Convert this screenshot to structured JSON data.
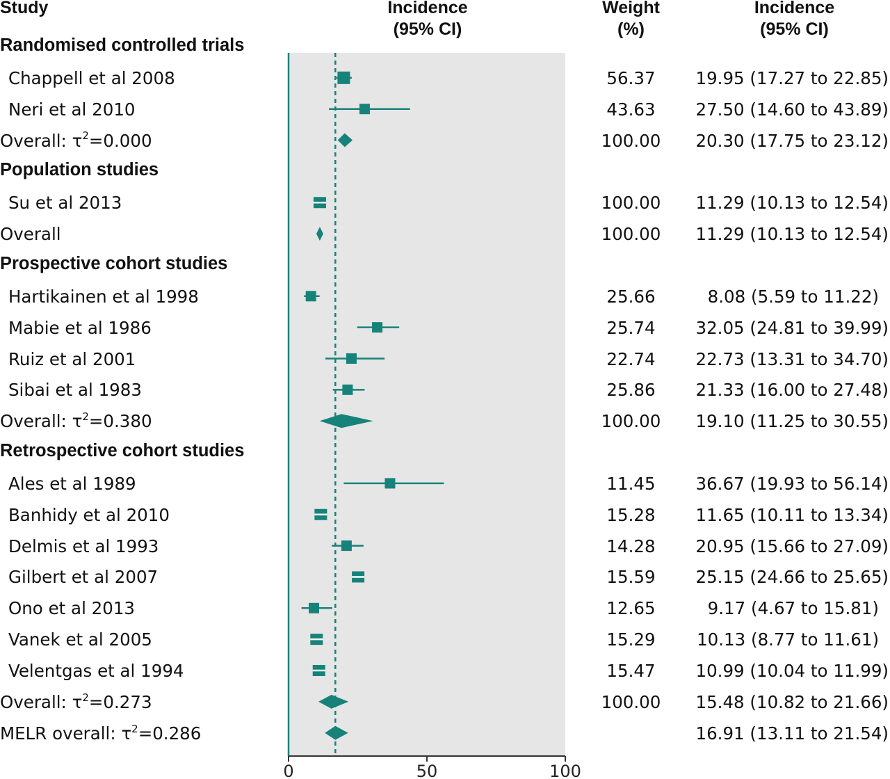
{
  "headers": {
    "study": "Study",
    "incidence_plot": [
      "Incidence",
      "(95% CI)"
    ],
    "weight": [
      "Weight",
      "(%)"
    ],
    "incidence_ci": [
      "Incidence",
      "(95% CI)"
    ]
  },
  "colors": {
    "accent": "#17827a",
    "panel": "#e6e6e6"
  },
  "chart_data": {
    "type": "forest",
    "x_ticks": [
      0,
      50,
      100
    ],
    "xlim": [
      0,
      100
    ],
    "reference_line": 16.91,
    "rows": [
      {
        "kind": "group",
        "label": "Randomised controlled trials"
      },
      {
        "kind": "study",
        "label": "Chappell et al 2008",
        "weight": "56.37",
        "ci_text": "19.95 (17.27 to 22.85)",
        "est": 19.95,
        "lo": 17.27,
        "hi": 22.85,
        "w": 56.37
      },
      {
        "kind": "study",
        "label": "Neri et al 2010",
        "weight": "43.63",
        "ci_text": "27.50 (14.60 to 43.89)",
        "est": 27.5,
        "lo": 14.6,
        "hi": 43.89,
        "w": 43.63
      },
      {
        "kind": "overall",
        "label": "Overall: τ",
        "tau": "=0.000",
        "weight": "100.00",
        "ci_text": "20.30 (17.75 to 23.12)",
        "est": 20.3,
        "lo": 17.75,
        "hi": 23.12
      },
      {
        "kind": "group",
        "label": "Population studies"
      },
      {
        "kind": "study",
        "label": "Su et al 2013",
        "weight": "100.00",
        "ci_text": "11.29 (10.13 to 12.54)",
        "est": 11.29,
        "lo": 10.13,
        "hi": 12.54,
        "w": 100.0
      },
      {
        "kind": "overall",
        "label": "Overall",
        "weight": "100.00",
        "ci_text": "11.29 (10.13 to 12.54)",
        "est": 11.29,
        "lo": 10.13,
        "hi": 12.54
      },
      {
        "kind": "group",
        "label": "Prospective cohort studies"
      },
      {
        "kind": "study",
        "label": "Hartikainen et al 1998",
        "weight": "25.66",
        "ci_text": "8.08 (5.59 to 11.22)",
        "pad": true,
        "est": 8.08,
        "lo": 5.59,
        "hi": 11.22,
        "w": 25.66
      },
      {
        "kind": "study",
        "label": "Mabie et al 1986",
        "weight": "25.74",
        "ci_text": "32.05 (24.81 to 39.99)",
        "est": 32.05,
        "lo": 24.81,
        "hi": 39.99,
        "w": 25.74
      },
      {
        "kind": "study",
        "label": "Ruiz et al 2001",
        "weight": "22.74",
        "ci_text": "22.73 (13.31 to 34.70)",
        "est": 22.73,
        "lo": 13.31,
        "hi": 34.7,
        "w": 22.74
      },
      {
        "kind": "study",
        "label": "Sibai et al 1983",
        "weight": "25.86",
        "ci_text": "21.33 (16.00 to 27.48)",
        "est": 21.33,
        "lo": 16.0,
        "hi": 27.48,
        "w": 25.86
      },
      {
        "kind": "overall",
        "label": "Overall: τ",
        "tau": "=0.380",
        "weight": "100.00",
        "ci_text": "19.10 (11.25 to 30.55)",
        "est": 19.1,
        "lo": 11.25,
        "hi": 30.55
      },
      {
        "kind": "group",
        "label": "Retrospective cohort studies"
      },
      {
        "kind": "study",
        "label": "Ales et al 1989",
        "weight": "11.45",
        "ci_text": "36.67 (19.93 to 56.14)",
        "est": 36.67,
        "lo": 19.93,
        "hi": 56.14,
        "w": 11.45
      },
      {
        "kind": "study",
        "label": "Banhidy et al 2010",
        "weight": "15.28",
        "ci_text": "11.65 (10.11 to 13.34)",
        "est": 11.65,
        "lo": 10.11,
        "hi": 13.34,
        "w": 15.28
      },
      {
        "kind": "study",
        "label": "Delmis et al 1993",
        "weight": "14.28",
        "ci_text": "20.95 (15.66 to 27.09)",
        "est": 20.95,
        "lo": 15.66,
        "hi": 27.09,
        "w": 14.28
      },
      {
        "kind": "study",
        "label": "Gilbert et al 2007",
        "weight": "15.59",
        "ci_text": "25.15 (24.66 to 25.65)",
        "est": 25.15,
        "lo": 24.66,
        "hi": 25.65,
        "w": 15.59
      },
      {
        "kind": "study",
        "label": "Ono et al 2013",
        "weight": "12.65",
        "ci_text": "9.17 (4.67 to 15.81)",
        "pad": true,
        "est": 9.17,
        "lo": 4.67,
        "hi": 15.81,
        "w": 12.65
      },
      {
        "kind": "study",
        "label": "Vanek et al 2005",
        "weight": "15.29",
        "ci_text": "10.13 (8.77 to 11.61)",
        "pad": true,
        "est": 10.13,
        "lo": 8.77,
        "hi": 11.61,
        "w": 15.29
      },
      {
        "kind": "study",
        "label": "Velentgas et al 1994",
        "weight": "15.47",
        "ci_text": "10.99 (10.04 to 11.99)",
        "est": 10.99,
        "lo": 10.04,
        "hi": 11.99,
        "w": 15.47
      },
      {
        "kind": "overall",
        "label": "Overall: τ",
        "tau": "=0.273",
        "weight": "100.00",
        "ci_text": "15.48 (10.82 to 21.66)",
        "est": 15.48,
        "lo": 10.82,
        "hi": 21.66
      },
      {
        "kind": "overall",
        "label": "MELR overall: τ",
        "tau": "=0.286",
        "weight": "",
        "ci_text": "16.91 (13.11 to 21.54)",
        "est": 16.91,
        "lo": 13.11,
        "hi": 21.54
      }
    ]
  }
}
